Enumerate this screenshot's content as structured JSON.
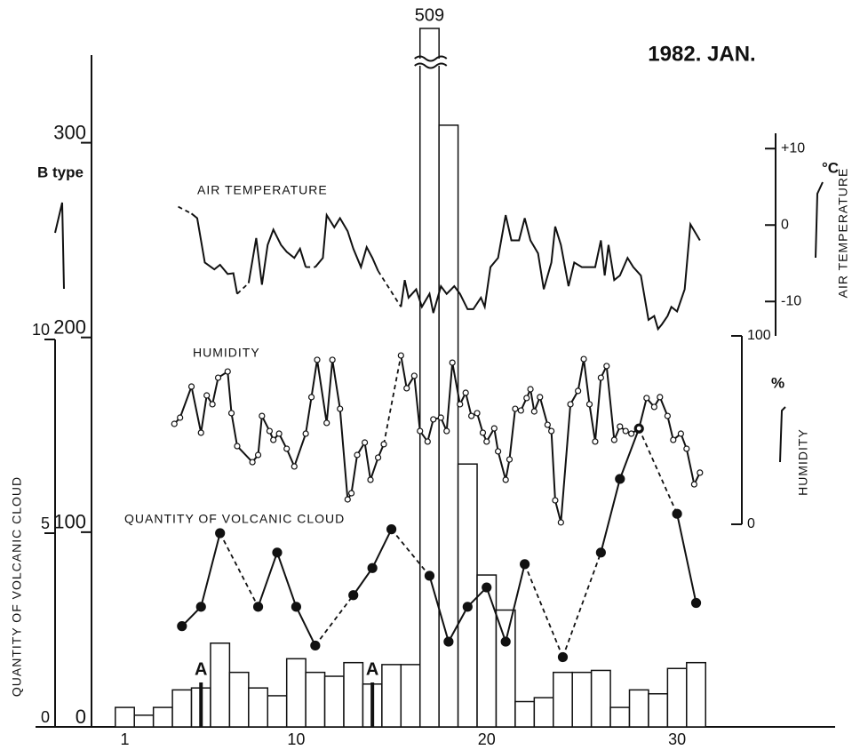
{
  "chart_data": {
    "type": "bar",
    "title": "1982. JAN.",
    "xlim": [
      -0.75,
      38.3
    ],
    "xticks": [
      1,
      10,
      20,
      30
    ],
    "ylim": [
      0,
      345
    ],
    "yticks": [
      0,
      100,
      200,
      300
    ],
    "ylabel": "B type",
    "y2lim": [
      0,
      10
    ],
    "y2ticks": [
      0,
      5,
      10
    ],
    "y2label": "QUANTITY OF VOLCANIC CLOUD",
    "y3lim": [
      -14.5,
      12
    ],
    "y3ticks": [
      {
        "value": 10,
        "label": "+10"
      },
      0,
      -10
    ],
    "y3label": "AIR TEMPERATURE",
    "y3unit": "°C",
    "y4lim": [
      0,
      100
    ],
    "y4ticks": [
      0,
      100
    ],
    "y4label": "HUMIDITY",
    "y4unit": "%",
    "annotations": [
      {
        "text": "A",
        "x": 5
      },
      {
        "text": "A",
        "x": 14
      }
    ],
    "series": [
      {
        "name": "B type",
        "type": "bar",
        "axis": "y",
        "color": "#111111",
        "x": [
          1,
          2,
          3,
          4,
          5,
          6,
          7,
          8,
          9,
          10,
          11,
          12,
          13,
          14,
          15,
          16,
          17,
          18,
          19,
          20,
          21,
          22,
          23,
          24,
          25,
          26,
          27,
          28,
          29,
          30,
          31
        ],
        "values": [
          10,
          6,
          10,
          19,
          20,
          43,
          28,
          20,
          16,
          35,
          28,
          26,
          33,
          22,
          32,
          32,
          509,
          309,
          135,
          78,
          60,
          13,
          15,
          28,
          28,
          29,
          10,
          19,
          17,
          30,
          33
        ],
        "value_labels": [
          null,
          null,
          null,
          null,
          null,
          null,
          null,
          null,
          null,
          null,
          null,
          null,
          null,
          null,
          null,
          null,
          "509",
          null,
          null,
          null,
          null,
          null,
          null,
          null,
          null,
          null,
          null,
          null,
          null,
          null,
          null
        ]
      },
      {
        "name": "QUANTITY OF VOLCANIC CLOUD",
        "type": "line",
        "axis": "y2",
        "marker": "filled",
        "color": "#111111",
        "x": [
          4,
          5,
          6,
          7,
          8,
          9,
          10,
          11,
          12,
          13,
          14,
          15,
          16,
          17,
          18,
          19,
          20,
          21,
          22,
          23,
          24,
          25,
          26,
          27,
          28,
          29,
          30,
          31
        ],
        "values": [
          2.6,
          3.1,
          5.0,
          null,
          3.1,
          4.5,
          3.1,
          2.1,
          null,
          3.4,
          4.1,
          5.1,
          null,
          3.9,
          2.2,
          3.1,
          3.6,
          2.2,
          4.2,
          null,
          1.8,
          null,
          4.5,
          6.4,
          7.7,
          null,
          5.5,
          3.2
        ]
      },
      {
        "name": "AIR TEMPERATURE",
        "type": "line",
        "axis": "y3",
        "marker": "none",
        "color": "#111111",
        "x": [
          3.8,
          4.1,
          4.5,
          4.8,
          5.2,
          5.7,
          6.0,
          6.4,
          6.7,
          6.9,
          7.2,
          7.5,
          7.9,
          8.2,
          8.5,
          8.8,
          9.2,
          9.5,
          9.9,
          10.2,
          10.5,
          10.7,
          11.0,
          11.4,
          11.6,
          12.0,
          12.3,
          12.7,
          13.0,
          13.4,
          13.7,
          14.0,
          14.3,
          14.9,
          15.5,
          15.7,
          15.9,
          16.3,
          16.6,
          17.0,
          17.2,
          17.6,
          17.9,
          18.3,
          18.6,
          19.0,
          19.3,
          19.7,
          19.9,
          20.2,
          20.6,
          21.0,
          21.3,
          21.7,
          22.0,
          22.3,
          22.7,
          23.0,
          23.4,
          23.6,
          23.9,
          24.3,
          24.6,
          25.0,
          25.3,
          25.7,
          26.0,
          26.2,
          26.4,
          26.7,
          27.0,
          27.4,
          27.7,
          28.1,
          28.5,
          28.8,
          29.0,
          29.2,
          29.5,
          29.7,
          30.0,
          30.4,
          30.7,
          31.2
        ],
        "values": [
          2.4,
          null,
          1.5,
          0.9,
          -4.9,
          -5.8,
          -5.2,
          -6.4,
          -6.3,
          -9.0,
          null,
          -7.6,
          -1.7,
          -7.8,
          -2.6,
          -0.6,
          -2.6,
          -3.5,
          -4.3,
          -3.1,
          -5.5,
          null,
          -5.5,
          -4.3,
          1.3,
          -0.3,
          0.9,
          -0.8,
          -3.1,
          -5.5,
          -2.9,
          -4.3,
          -6.0,
          null,
          -10.7,
          -7.2,
          -9.5,
          -8.4,
          -10.7,
          -9.0,
          -11.5,
          -8.0,
          -9.0,
          -8.0,
          -9.0,
          -11.0,
          -11.0,
          -9.5,
          -10.7,
          -5.5,
          -4.3,
          1.3,
          -2.0,
          -2.0,
          0.9,
          -2.0,
          -3.7,
          -8.4,
          -4.9,
          -0.2,
          -2.6,
          -8.0,
          -4.9,
          -5.5,
          -5.5,
          -5.5,
          -2.0,
          -6.6,
          -2.6,
          -7.2,
          -6.6,
          -4.3,
          -5.5,
          -6.6,
          -12.4,
          -11.9,
          -13.6,
          -13.0,
          -11.9,
          -10.7,
          -11.3,
          -8.4,
          0.1,
          -2.0
        ]
      },
      {
        "name": "HUMIDITY",
        "type": "line",
        "axis": "y4",
        "marker": "open",
        "color": "#111111",
        "x": [
          3.6,
          3.9,
          4.5,
          5.0,
          5.3,
          5.6,
          5.9,
          6.4,
          6.6,
          6.9,
          7.7,
          8.0,
          8.2,
          8.6,
          8.8,
          9.1,
          9.5,
          9.9,
          10.5,
          10.8,
          11.1,
          11.6,
          11.9,
          12.3,
          12.7,
          12.9,
          13.2,
          13.6,
          13.9,
          14.3,
          14.6,
          15.0,
          15.5,
          15.8,
          16.2,
          16.5,
          16.9,
          17.2,
          17.6,
          17.9,
          18.2,
          18.6,
          18.9,
          19.2,
          19.5,
          19.8,
          20.0,
          20.4,
          20.6,
          21.0,
          21.2,
          21.5,
          21.8,
          22.1,
          22.3,
          22.5,
          22.8,
          23.2,
          23.4,
          23.6,
          23.9,
          24.4,
          24.8,
          25.1,
          25.4,
          25.7,
          26.0,
          26.3,
          26.7,
          27.0,
          27.3,
          27.6,
          28.0,
          28.4,
          28.8,
          29.1,
          29.5,
          29.8,
          30.2,
          30.5,
          30.9,
          31.2
        ],
        "values": [
          53.3,
          56.6,
          73.1,
          48.6,
          68.4,
          63.7,
          77.8,
          81.1,
          59.0,
          41.5,
          33.0,
          36.8,
          57.5,
          49.5,
          44.8,
          48.1,
          40.1,
          30.7,
          48.1,
          67.5,
          87.3,
          53.8,
          87.3,
          61.3,
          13.2,
          16.5,
          36.8,
          43.4,
          23.6,
          35.4,
          42.5,
          null,
          89.6,
          72.2,
          78.8,
          49.5,
          43.9,
          55.7,
          56.6,
          49.5,
          85.8,
          63.7,
          69.8,
          57.5,
          59.0,
          48.6,
          43.9,
          50.9,
          38.7,
          23.6,
          34.4,
          61.3,
          60.4,
          67.0,
          71.7,
          59.9,
          67.5,
          52.8,
          49.5,
          12.7,
          1,
          63.7,
          70.8,
          87.7,
          63.7,
          43.9,
          77.8,
          84.0,
          44.8,
          51.9,
          49.5,
          48.1,
          50.9,
          67.0,
          62.3,
          67.5,
          57.5,
          44.8,
          48.1,
          40.1,
          21.2,
          27.4
        ]
      }
    ]
  }
}
